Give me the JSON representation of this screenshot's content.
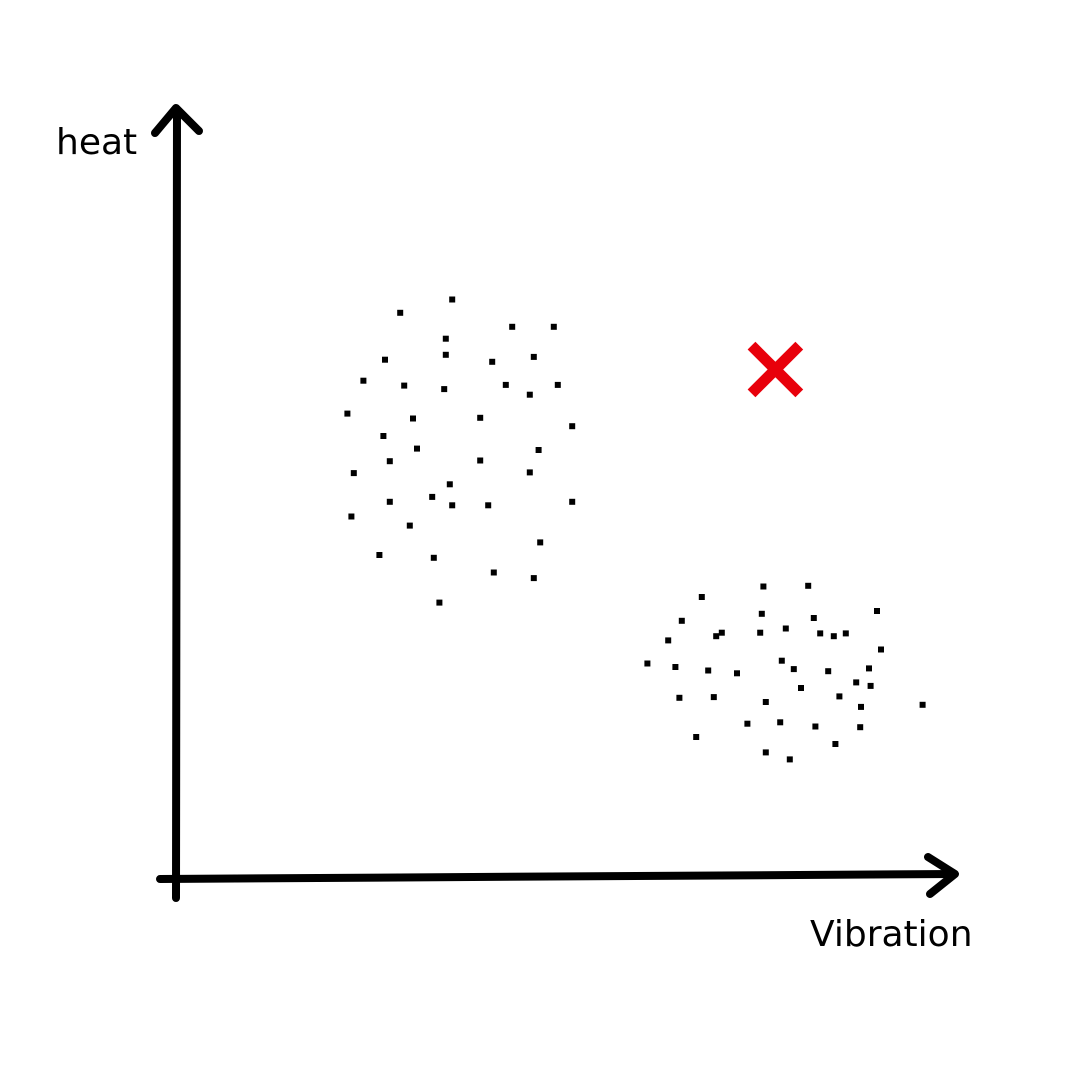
{
  "chart_data": {
    "type": "scatter",
    "title": "",
    "xlabel": "Vibration",
    "ylabel": "heat",
    "xlim": [
      0,
      100
    ],
    "ylim": [
      0,
      100
    ],
    "grid": false,
    "legend": "none",
    "ticks": "none",
    "series": [
      {
        "marker": "square",
        "color": "#000000",
        "points": [
          [
            27.9,
            80.6
          ],
          [
            34.4,
            82.5
          ],
          [
            41.9,
            78.6
          ],
          [
            47.1,
            78.6
          ],
          [
            26.0,
            73.9
          ],
          [
            33.6,
            76.9
          ],
          [
            33.6,
            74.6
          ],
          [
            39.4,
            73.6
          ],
          [
            44.6,
            74.3
          ],
          [
            23.3,
            70.9
          ],
          [
            28.4,
            70.2
          ],
          [
            33.4,
            69.7
          ],
          [
            41.1,
            70.3
          ],
          [
            44.1,
            68.9
          ],
          [
            47.6,
            70.3
          ],
          [
            21.3,
            66.2
          ],
          [
            25.8,
            63.0
          ],
          [
            29.5,
            65.5
          ],
          [
            37.9,
            65.6
          ],
          [
            49.4,
            64.4
          ],
          [
            26.6,
            59.4
          ],
          [
            30.0,
            61.2
          ],
          [
            37.9,
            59.5
          ],
          [
            45.2,
            61.0
          ],
          [
            22.1,
            57.7
          ],
          [
            26.6,
            53.6
          ],
          [
            31.9,
            54.3
          ],
          [
            34.1,
            56.1
          ],
          [
            44.1,
            57.8
          ],
          [
            49.4,
            53.6
          ],
          [
            21.8,
            51.5
          ],
          [
            29.1,
            50.2
          ],
          [
            34.4,
            53.1
          ],
          [
            38.9,
            53.1
          ],
          [
            25.3,
            46.0
          ],
          [
            32.1,
            45.6
          ],
          [
            45.4,
            47.8
          ],
          [
            39.6,
            43.5
          ],
          [
            44.6,
            42.7
          ],
          [
            32.8,
            39.2
          ],
          [
            73.3,
            41.5
          ],
          [
            78.9,
            41.6
          ],
          [
            65.6,
            40.0
          ],
          [
            73.1,
            37.6
          ],
          [
            79.6,
            37.0
          ],
          [
            87.5,
            38.0
          ],
          [
            63.1,
            36.6
          ],
          [
            68.1,
            34.9
          ],
          [
            72.9,
            34.9
          ],
          [
            76.1,
            35.5
          ],
          [
            80.4,
            34.8
          ],
          [
            82.1,
            34.4
          ],
          [
            83.6,
            34.8
          ],
          [
            61.4,
            33.8
          ],
          [
            67.4,
            34.4
          ],
          [
            58.8,
            30.5
          ],
          [
            62.3,
            30.0
          ],
          [
            66.4,
            29.5
          ],
          [
            70.0,
            29.1
          ],
          [
            75.6,
            30.9
          ],
          [
            77.1,
            29.7
          ],
          [
            81.4,
            29.4
          ],
          [
            86.5,
            29.8
          ],
          [
            88.0,
            32.5
          ],
          [
            84.9,
            27.8
          ],
          [
            86.7,
            27.3
          ],
          [
            62.8,
            25.6
          ],
          [
            67.1,
            25.7
          ],
          [
            73.6,
            25.0
          ],
          [
            78.0,
            27.0
          ],
          [
            82.8,
            25.8
          ],
          [
            85.5,
            24.3
          ],
          [
            93.2,
            24.6
          ],
          [
            71.3,
            21.9
          ],
          [
            75.4,
            22.1
          ],
          [
            79.8,
            21.5
          ],
          [
            85.4,
            21.4
          ],
          [
            64.9,
            20.0
          ],
          [
            82.3,
            19.0
          ],
          [
            73.6,
            17.8
          ],
          [
            76.6,
            16.8
          ]
        ]
      },
      {
        "marker": "x",
        "color": "#e8000b",
        "points": [
          [
            74.8,
            72.5
          ]
        ]
      }
    ]
  }
}
